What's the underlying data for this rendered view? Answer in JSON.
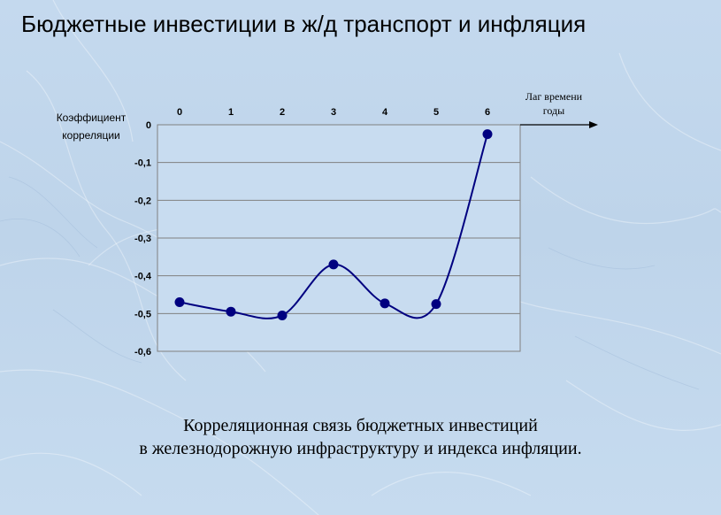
{
  "slide": {
    "title": "Бюджетные инвестиции в ж/д транспорт и инфляция",
    "caption_line1": "Корреляционная связь бюджетных инвестиций",
    "caption_line2": "в железнодорожную инфраструктуру и индекса инфляции."
  },
  "colors": {
    "series": "#000080",
    "grid": "#808080",
    "plot_background": "#c8dcf0"
  },
  "chart_data": {
    "type": "line",
    "y_axis_label_line1": "Коэффициент",
    "y_axis_label_line2": "корреляции",
    "x_axis_label_line1": "Лаг времени",
    "x_axis_label_line2": "годы",
    "x_axis_position": "top",
    "categories": [
      "0",
      "1",
      "2",
      "3",
      "4",
      "5",
      "6"
    ],
    "series": [
      {
        "values": [
          -0.47,
          -0.495,
          -0.505,
          -0.37,
          -0.473,
          -0.475,
          -0.025
        ]
      }
    ],
    "yticks": [
      "0",
      "-0,1",
      "-0,2",
      "-0,3",
      "-0,4",
      "-0,5",
      "-0,6"
    ],
    "ylim": [
      -0.6,
      0
    ],
    "grid": true,
    "smooth": true
  }
}
